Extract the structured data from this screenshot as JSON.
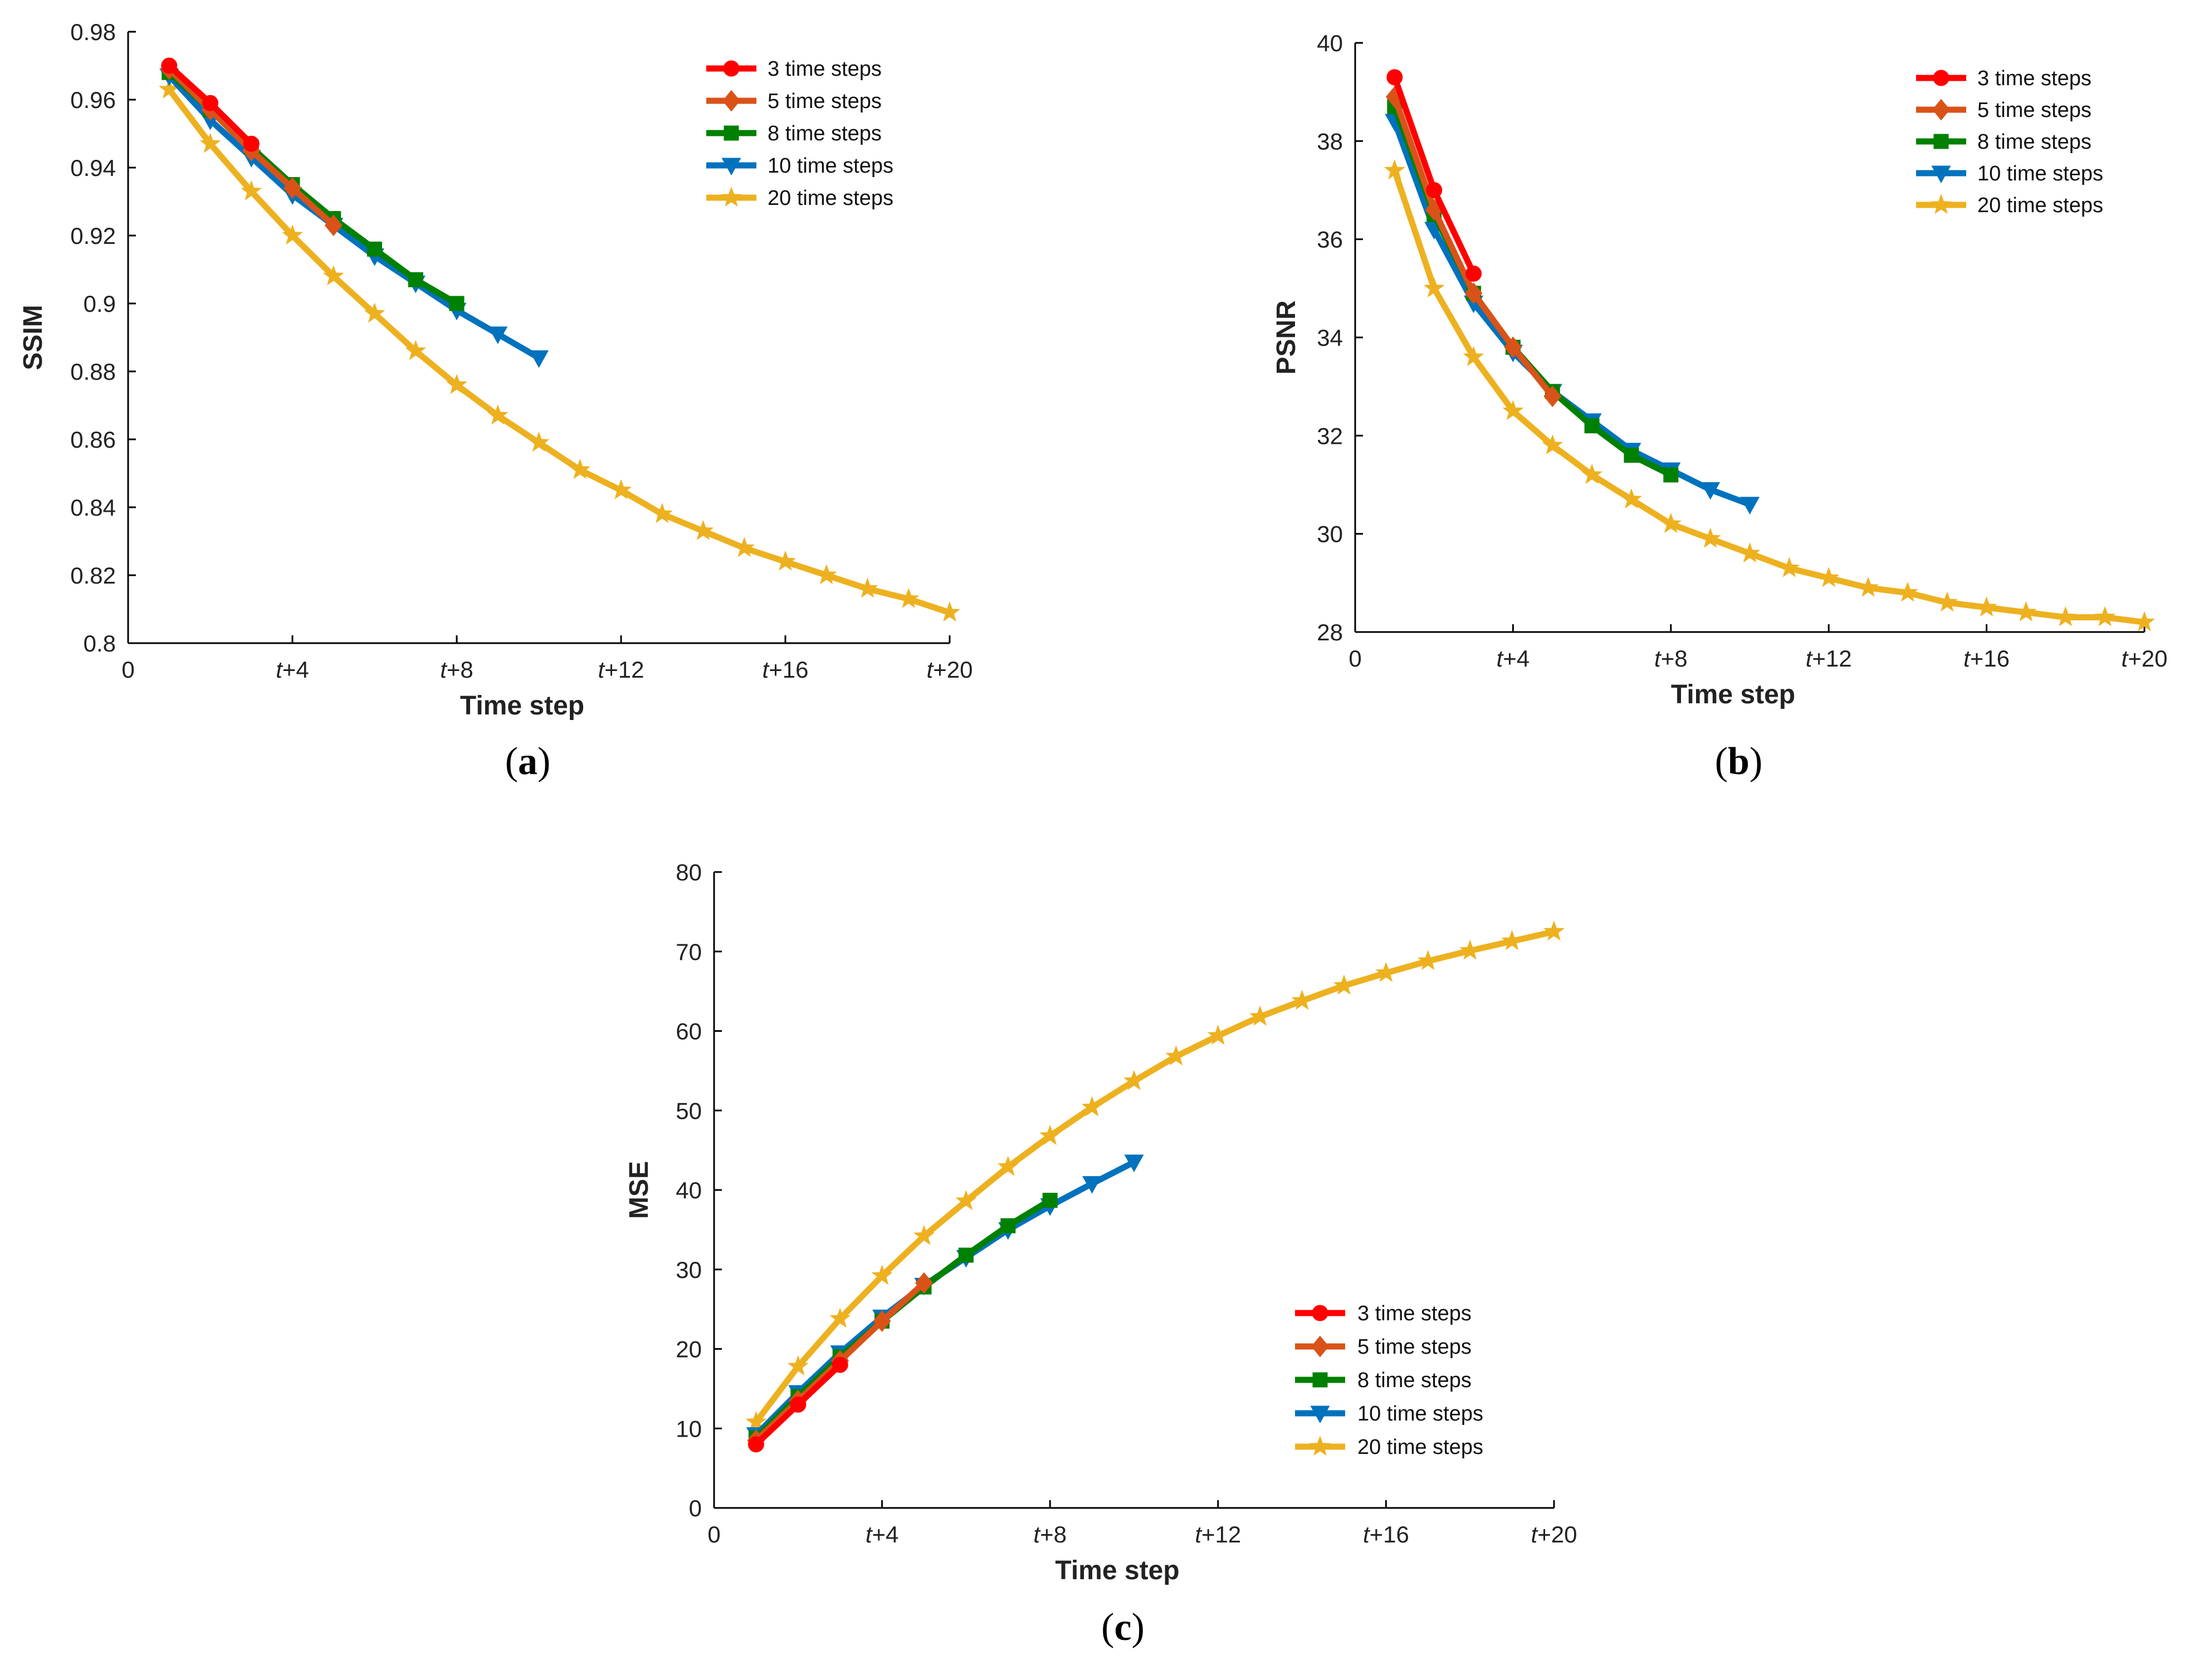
{
  "chart_data": [
    {
      "type": "line",
      "panel_label": "(a)",
      "xlabel": "Time step",
      "ylabel": "SSIM",
      "xlim": [
        0,
        20
      ],
      "ylim": [
        0.8,
        0.98
      ],
      "x_ticks": [
        {
          "value": 0,
          "label": "0",
          "italic": false
        },
        {
          "value": 4,
          "label": "t+4",
          "italic": true
        },
        {
          "value": 8,
          "label": "t+8",
          "italic": true
        },
        {
          "value": 12,
          "label": "t+12",
          "italic": true
        },
        {
          "value": 16,
          "label": "t+16",
          "italic": true
        },
        {
          "value": 20,
          "label": "t+20",
          "italic": true
        }
      ],
      "y_ticks": [
        {
          "value": 0.8,
          "label": "0.8"
        },
        {
          "value": 0.82,
          "label": "0.82"
        },
        {
          "value": 0.84,
          "label": "0.84"
        },
        {
          "value": 0.86,
          "label": "0.86"
        },
        {
          "value": 0.88,
          "label": "0.88"
        },
        {
          "value": 0.9,
          "label": "0.9"
        },
        {
          "value": 0.92,
          "label": "0.92"
        },
        {
          "value": 0.94,
          "label": "0.94"
        },
        {
          "value": 0.96,
          "label": "0.96"
        },
        {
          "value": 0.98,
          "label": "0.98"
        }
      ],
      "legend_position": "top-right",
      "series": [
        {
          "name": "3 time steps",
          "color": "#ff0000",
          "marker": "circle",
          "x": [
            1,
            2,
            3
          ],
          "y": [
            0.97,
            0.959,
            0.947
          ]
        },
        {
          "name": "5 time steps",
          "color": "#d95319",
          "marker": "diamond",
          "x": [
            1,
            2,
            3,
            4,
            5
          ],
          "y": [
            0.969,
            0.957,
            0.945,
            0.934,
            0.923
          ]
        },
        {
          "name": "8 time steps",
          "color": "#008000",
          "marker": "square",
          "x": [
            1,
            2,
            3,
            4,
            5,
            6,
            7,
            8
          ],
          "y": [
            0.968,
            0.957,
            0.946,
            0.935,
            0.925,
            0.916,
            0.907,
            0.9
          ]
        },
        {
          "name": "10 time steps",
          "color": "#0072bd",
          "marker": "triangle-down",
          "x": [
            1,
            2,
            3,
            4,
            5,
            6,
            7,
            8,
            9,
            10
          ],
          "y": [
            0.967,
            0.954,
            0.943,
            0.932,
            0.923,
            0.914,
            0.906,
            0.898,
            0.891,
            0.884
          ]
        },
        {
          "name": "20 time steps",
          "color": "#edb120",
          "marker": "star",
          "x": [
            1,
            2,
            3,
            4,
            5,
            6,
            7,
            8,
            9,
            10,
            11,
            12,
            13,
            14,
            15,
            16,
            17,
            18,
            19,
            20
          ],
          "y": [
            0.963,
            0.947,
            0.933,
            0.92,
            0.908,
            0.897,
            0.886,
            0.876,
            0.867,
            0.859,
            0.851,
            0.845,
            0.838,
            0.833,
            0.828,
            0.824,
            0.82,
            0.816,
            0.813,
            0.809
          ]
        }
      ]
    },
    {
      "type": "line",
      "panel_label": "(b)",
      "xlabel": "Time step",
      "ylabel": "PSNR",
      "xlim": [
        0,
        20
      ],
      "ylim": [
        28,
        40
      ],
      "x_ticks": [
        {
          "value": 0,
          "label": "0",
          "italic": false
        },
        {
          "value": 4,
          "label": "t+4",
          "italic": true
        },
        {
          "value": 8,
          "label": "t+8",
          "italic": true
        },
        {
          "value": 12,
          "label": "t+12",
          "italic": true
        },
        {
          "value": 16,
          "label": "t+16",
          "italic": true
        },
        {
          "value": 20,
          "label": "t+20",
          "italic": true
        }
      ],
      "y_ticks": [
        {
          "value": 28,
          "label": "28"
        },
        {
          "value": 30,
          "label": "30"
        },
        {
          "value": 32,
          "label": "32"
        },
        {
          "value": 34,
          "label": "34"
        },
        {
          "value": 36,
          "label": "36"
        },
        {
          "value": 38,
          "label": "38"
        },
        {
          "value": 40,
          "label": "40"
        }
      ],
      "legend_position": "top-right",
      "series": [
        {
          "name": "3 time steps",
          "color": "#ff0000",
          "marker": "circle",
          "x": [
            1,
            2,
            3
          ],
          "y": [
            39.3,
            37.0,
            35.3
          ]
        },
        {
          "name": "5 time steps",
          "color": "#d95319",
          "marker": "diamond",
          "x": [
            1,
            2,
            3,
            4,
            5
          ],
          "y": [
            38.9,
            36.6,
            34.9,
            33.8,
            32.8
          ]
        },
        {
          "name": "8 time steps",
          "color": "#008000",
          "marker": "square",
          "x": [
            1,
            2,
            3,
            4,
            5,
            6,
            7,
            8
          ],
          "y": [
            38.7,
            36.5,
            34.9,
            33.8,
            32.9,
            32.2,
            31.6,
            31.2
          ]
        },
        {
          "name": "10 time steps",
          "color": "#0072bd",
          "marker": "triangle-down",
          "x": [
            1,
            2,
            3,
            4,
            5,
            6,
            7,
            8,
            9,
            10
          ],
          "y": [
            38.4,
            36.2,
            34.7,
            33.7,
            32.9,
            32.3,
            31.7,
            31.3,
            30.9,
            30.6
          ]
        },
        {
          "name": "20 time steps",
          "color": "#edb120",
          "marker": "star",
          "x": [
            1,
            2,
            3,
            4,
            5,
            6,
            7,
            8,
            9,
            10,
            11,
            12,
            13,
            14,
            15,
            16,
            17,
            18,
            19,
            20
          ],
          "y": [
            37.4,
            35.0,
            33.6,
            32.5,
            31.8,
            31.2,
            30.7,
            30.2,
            29.9,
            29.6,
            29.3,
            29.1,
            28.9,
            28.8,
            28.6,
            28.5,
            28.4,
            28.3,
            28.3,
            28.2
          ]
        }
      ]
    },
    {
      "type": "line",
      "panel_label": "(c)",
      "xlabel": "Time step",
      "ylabel": "MSE",
      "xlim": [
        0,
        20
      ],
      "ylim": [
        0,
        80
      ],
      "x_ticks": [
        {
          "value": 0,
          "label": "0",
          "italic": false
        },
        {
          "value": 4,
          "label": "t+4",
          "italic": true
        },
        {
          "value": 8,
          "label": "t+8",
          "italic": true
        },
        {
          "value": 12,
          "label": "t+12",
          "italic": true
        },
        {
          "value": 16,
          "label": "t+16",
          "italic": true
        },
        {
          "value": 20,
          "label": "t+20",
          "italic": true
        }
      ],
      "y_ticks": [
        {
          "value": 0,
          "label": "0"
        },
        {
          "value": 10,
          "label": "10"
        },
        {
          "value": 20,
          "label": "20"
        },
        {
          "value": 30,
          "label": "30"
        },
        {
          "value": 40,
          "label": "40"
        },
        {
          "value": 50,
          "label": "50"
        },
        {
          "value": 60,
          "label": "60"
        },
        {
          "value": 70,
          "label": "70"
        },
        {
          "value": 80,
          "label": "80"
        }
      ],
      "legend_position": "bottom-right",
      "series": [
        {
          "name": "3 time steps",
          "color": "#ff0000",
          "marker": "circle",
          "x": [
            1,
            2,
            3
          ],
          "y": [
            8.0,
            13.0,
            18.0
          ]
        },
        {
          "name": "5 time steps",
          "color": "#d95319",
          "marker": "diamond",
          "x": [
            1,
            2,
            3,
            4,
            5
          ],
          "y": [
            8.5,
            13.5,
            18.5,
            23.5,
            28.3
          ]
        },
        {
          "name": "8 time steps",
          "color": "#008000",
          "marker": "square",
          "x": [
            1,
            2,
            3,
            4,
            5,
            6,
            7,
            8
          ],
          "y": [
            8.8,
            14.0,
            19.0,
            23.5,
            27.8,
            31.8,
            35.5,
            38.7
          ]
        },
        {
          "name": "10 time steps",
          "color": "#0072bd",
          "marker": "triangle-down",
          "x": [
            1,
            2,
            3,
            4,
            5,
            6,
            7,
            8,
            9,
            10
          ],
          "y": [
            9.2,
            14.5,
            19.5,
            24.0,
            28.0,
            31.5,
            35.0,
            38.0,
            40.8,
            43.5
          ]
        },
        {
          "name": "20 time steps",
          "color": "#edb120",
          "marker": "star",
          "x": [
            1,
            2,
            3,
            4,
            5,
            6,
            7,
            8,
            9,
            10,
            11,
            12,
            13,
            14,
            15,
            16,
            17,
            18,
            19,
            20
          ],
          "y": [
            10.8,
            17.8,
            23.8,
            29.2,
            34.2,
            38.6,
            42.9,
            46.8,
            50.4,
            53.7,
            56.8,
            59.4,
            61.8,
            63.8,
            65.7,
            67.3,
            68.8,
            70.1,
            71.3,
            72.5
          ]
        }
      ]
    }
  ]
}
